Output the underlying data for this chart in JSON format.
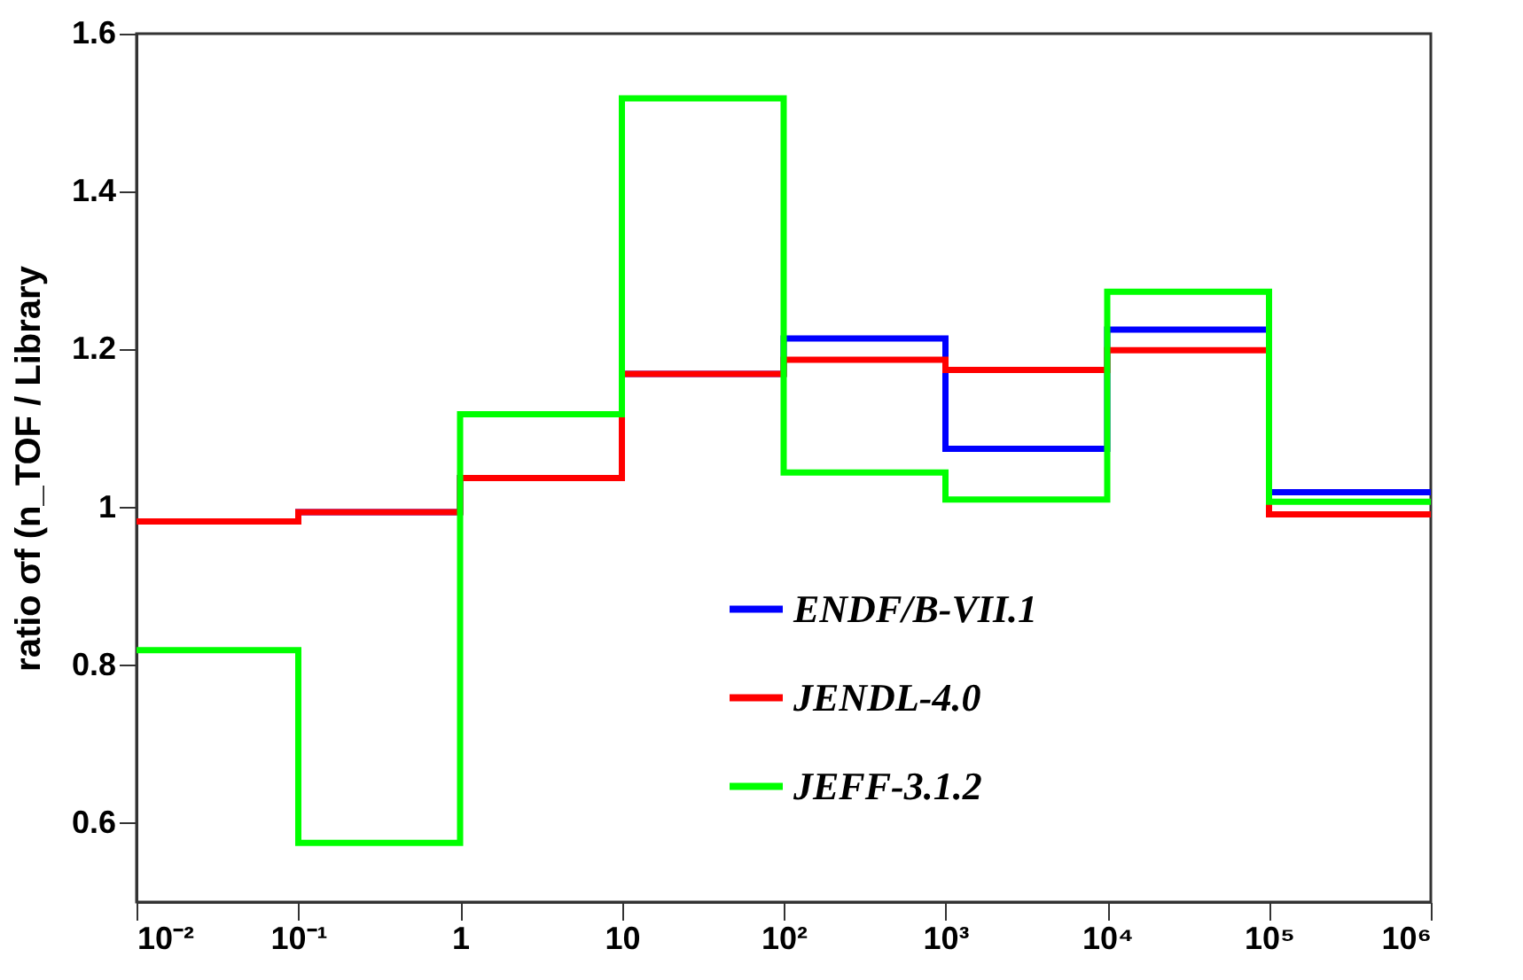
{
  "chart_data": {
    "type": "histogram",
    "ylabel": "ratio σf (n_TOF / Library",
    "bins": [
      0.01,
      0.1,
      1,
      10,
      100,
      1000,
      10000,
      100000,
      1000000
    ],
    "series": [
      {
        "name": "ENDF/B-VII.1",
        "color": "#0000ff",
        "values": [
          0.982,
          0.994,
          1.037,
          1.169,
          1.214,
          1.074,
          1.225,
          1.019
        ]
      },
      {
        "name": "JENDL-4.0",
        "color": "#ff0000",
        "values": [
          0.982,
          0.994,
          1.037,
          1.169,
          1.187,
          1.174,
          1.199,
          0.991
        ]
      },
      {
        "name": "JEFF-3.1.2",
        "color": "#00ff00",
        "values": [
          0.819,
          0.575,
          1.118,
          1.518,
          1.044,
          1.01,
          1.273,
          1.007
        ]
      }
    ],
    "log": "x",
    "xlim": [
      0.01,
      1000000
    ],
    "xticks": [
      {
        "value": 0.01,
        "label": "10⁻²"
      },
      {
        "value": 0.1,
        "label": "10⁻¹"
      },
      1,
      10,
      {
        "value": 100,
        "label": "10²"
      },
      {
        "value": 1000,
        "label": "10³"
      },
      {
        "value": 10000,
        "label": "10⁴"
      },
      {
        "value": 100000,
        "label": "10⁵"
      },
      {
        "value": 1000000,
        "label": "10⁶"
      }
    ],
    "ylim": [
      0.5,
      1.6
    ],
    "yticks": [
      0.6,
      0.8,
      {
        "value": 1,
        "label": "1"
      },
      1.2,
      1.4,
      1.6
    ],
    "grid": false,
    "legend": "bottom"
  }
}
